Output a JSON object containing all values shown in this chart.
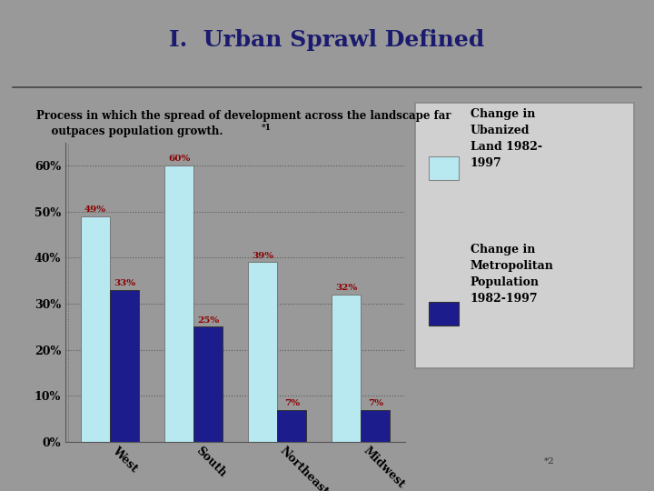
{
  "title": "I.  Urban Sprawl Defined",
  "subtitle_line1": "Process in which the spread of development across the landscape far",
  "subtitle_line2": "    outpaces population growth.",
  "subtitle_sup": "*1",
  "categories": [
    "West",
    "South",
    "Northeast",
    "Midwest"
  ],
  "urbanized_land": [
    49,
    60,
    39,
    32
  ],
  "metro_population": [
    33,
    25,
    7,
    7
  ],
  "urbanized_color": "#b8e8f0",
  "metro_color": "#1c1c8c",
  "bar_label_color": "#8b0000",
  "title_color": "#1a1a6e",
  "bg_color": "#999999",
  "title_bg": "#aaaaaa",
  "legend_bg": "#d0d0d0",
  "ylim": [
    0,
    65
  ],
  "yticks": [
    0,
    10,
    20,
    30,
    40,
    50,
    60
  ],
  "footnote": "*2",
  "legend_label1": "Change in\nUbanized\nLand 1982-\n1997",
  "legend_label2": "Change in\nMetropolitan\nPopulation\n1982-1997"
}
